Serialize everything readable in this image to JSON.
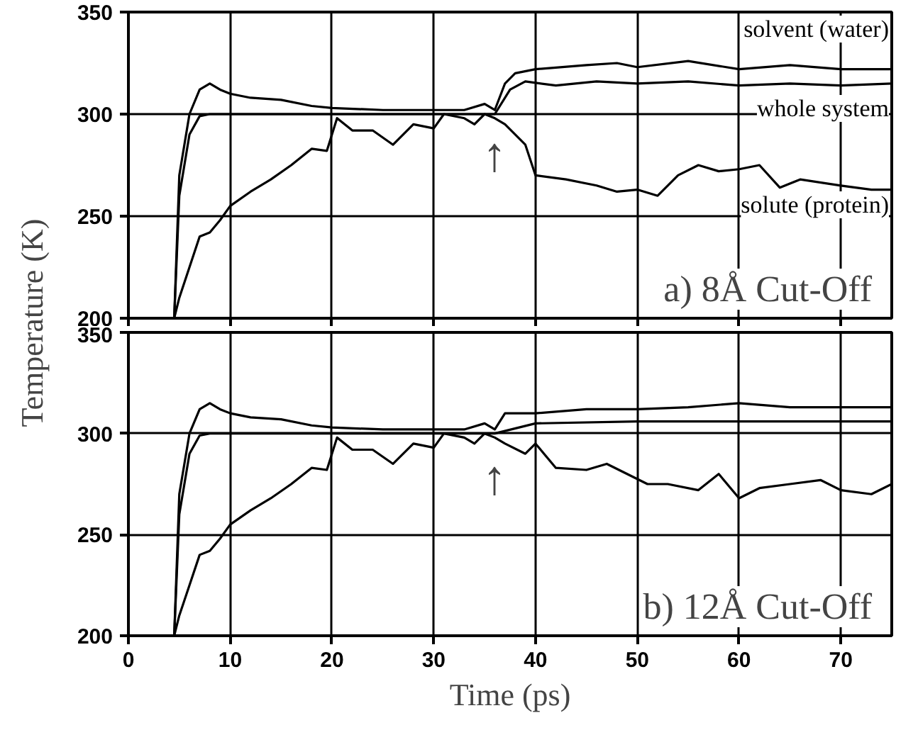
{
  "chart_data": [
    {
      "type": "line",
      "ylabel": "Temperature (K)",
      "xlim": [
        0,
        75
      ],
      "ylim": [
        200,
        350
      ],
      "xticks": [
        0,
        10,
        20,
        30,
        40,
        50,
        60,
        70
      ],
      "yticks": [
        200,
        250,
        300,
        350
      ],
      "tick_labels": "y",
      "grid": true,
      "line_style": "solid",
      "annotations": [
        "a) 8Å Cut-Off",
        "↑"
      ],
      "series": [
        {
          "name": "solvent (water)",
          "color": "#000000",
          "x": [
            4.5,
            5,
            6,
            7,
            8,
            9,
            10,
            12,
            15,
            18,
            20,
            25,
            30,
            33,
            35,
            36,
            37,
            38,
            40,
            45,
            48,
            50,
            55,
            60,
            65,
            70,
            75
          ],
          "values": [
            200,
            270,
            300,
            312,
            315,
            312,
            310,
            308,
            307,
            304,
            303,
            302,
            302,
            302,
            305,
            302,
            315,
            320,
            322,
            324,
            325,
            323,
            326,
            322,
            324,
            322,
            322
          ]
        },
        {
          "name": "whole system",
          "color": "#000000",
          "x": [
            4.5,
            5,
            6,
            7,
            8,
            10,
            15,
            20,
            25,
            30,
            36,
            37.5,
            39,
            42,
            46,
            50,
            55,
            60,
            65,
            70,
            75
          ],
          "values": [
            200,
            260,
            290,
            299,
            300,
            300,
            300,
            300,
            300,
            300,
            300,
            312,
            316,
            314,
            316,
            315,
            316,
            314,
            315,
            314,
            315
          ]
        },
        {
          "name": "solute (protein)",
          "color": "#000000",
          "x": [
            4.5,
            5,
            6,
            7,
            8,
            9,
            10,
            12,
            14,
            16,
            18,
            19.5,
            20.5,
            22,
            24,
            26,
            28,
            30,
            31,
            33,
            34,
            35,
            36,
            37,
            39,
            40,
            43,
            46,
            48,
            50,
            52,
            54,
            56,
            58,
            60,
            62,
            64,
            66,
            70,
            73,
            75
          ],
          "values": [
            200,
            210,
            225,
            240,
            242,
            248,
            255,
            262,
            268,
            275,
            283,
            282,
            298,
            292,
            292,
            285,
            295,
            293,
            300,
            298,
            295,
            300,
            298,
            295,
            285,
            270,
            268,
            265,
            262,
            263,
            260,
            270,
            275,
            272,
            273,
            275,
            264,
            268,
            265,
            263,
            263
          ]
        }
      ]
    },
    {
      "type": "line",
      "xlabel": "Time (ps)",
      "xlim": [
        0,
        75
      ],
      "ylim": [
        200,
        350
      ],
      "xticks": [
        0,
        10,
        20,
        30,
        40,
        50,
        60,
        70
      ],
      "yticks": [
        200,
        250,
        300,
        350
      ],
      "grid": true,
      "line_style": "solid",
      "annotations": [
        "b) 12Å Cut-Off",
        "↑"
      ],
      "series": [
        {
          "color": "#000000",
          "x": [
            4.5,
            5,
            6,
            7,
            8,
            9,
            10,
            12,
            15,
            18,
            20,
            25,
            30,
            33,
            35,
            36,
            37,
            40,
            45,
            50,
            55,
            60,
            65,
            70,
            75
          ],
          "values": [
            200,
            270,
            300,
            312,
            315,
            312,
            310,
            308,
            307,
            304,
            303,
            302,
            302,
            302,
            305,
            302,
            310,
            310,
            312,
            312,
            313,
            315,
            313,
            313,
            313
          ]
        },
        {
          "color": "#000000",
          "x": [
            4.5,
            5,
            6,
            7,
            8,
            10,
            15,
            20,
            25,
            30,
            36,
            40,
            50,
            60,
            75
          ],
          "values": [
            200,
            260,
            290,
            299,
            300,
            300,
            300,
            300,
            300,
            300,
            300,
            305,
            306,
            306,
            306
          ]
        },
        {
          "color": "#000000",
          "x": [
            4.5,
            5,
            6,
            7,
            8,
            9,
            10,
            12,
            14,
            16,
            18,
            19.5,
            20.5,
            22,
            24,
            26,
            28,
            30,
            31,
            33,
            34,
            35,
            36,
            37,
            39,
            40,
            42,
            45,
            47,
            49,
            51,
            53,
            56,
            58,
            60,
            62,
            65,
            68,
            70,
            73,
            75
          ],
          "values": [
            200,
            210,
            225,
            240,
            242,
            248,
            255,
            262,
            268,
            275,
            283,
            282,
            298,
            292,
            292,
            285,
            295,
            293,
            300,
            298,
            295,
            300,
            298,
            295,
            290,
            295,
            283,
            282,
            285,
            280,
            275,
            275,
            272,
            280,
            268,
            273,
            275,
            277,
            272,
            270,
            275
          ]
        }
      ]
    }
  ]
}
